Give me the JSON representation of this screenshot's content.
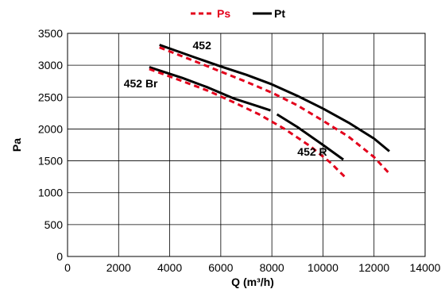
{
  "chart_data": {
    "type": "line",
    "xlabel": "Q (m³/h)",
    "ylabel": "Pa",
    "xlim": [
      0,
      14000
    ],
    "ylim": [
      0,
      3500
    ],
    "xticks": [
      0,
      2000,
      4000,
      6000,
      8000,
      10000,
      12000,
      14000
    ],
    "yticks": [
      0,
      500,
      1000,
      1500,
      2000,
      2500,
      3000,
      3500
    ],
    "grid": true,
    "legend": {
      "position": "top-center",
      "items": [
        {
          "label": "Ps",
          "color": "#e3001b",
          "style": "dashed"
        },
        {
          "label": "Pt",
          "color": "#000000",
          "style": "solid"
        }
      ]
    },
    "annotations": [
      {
        "text": "452",
        "x": 4900,
        "y": 3250
      },
      {
        "text": "452 Br",
        "x": 2200,
        "y": 2650
      },
      {
        "text": "452 R",
        "x": 9000,
        "y": 1580
      }
    ],
    "series": [
      {
        "curve": "452",
        "kind": "Pt",
        "color": "#000000",
        "style": "solid",
        "x": [
          3600,
          5000,
          6000,
          7000,
          8000,
          9000,
          10000,
          11000,
          12000,
          12600
        ],
        "y": [
          3320,
          3120,
          2980,
          2850,
          2700,
          2520,
          2320,
          2100,
          1850,
          1650
        ]
      },
      {
        "curve": "452",
        "kind": "Ps",
        "color": "#e3001b",
        "style": "dashed",
        "x": [
          3600,
          5000,
          6000,
          7000,
          8000,
          9000,
          10000,
          11000,
          12000,
          12600
        ],
        "y": [
          3280,
          3060,
          2900,
          2740,
          2570,
          2370,
          2130,
          1880,
          1560,
          1300
        ]
      },
      {
        "curve": "452 Br",
        "kind": "Pt",
        "color": "#000000",
        "style": "solid",
        "x": [
          3200,
          4500,
          5500,
          6500,
          7500,
          7950
        ],
        "y": [
          2970,
          2800,
          2650,
          2480,
          2350,
          2290
        ]
      },
      {
        "curve": "452 Br",
        "kind": "Ps",
        "color": "#e3001b",
        "style": "dashed",
        "x": [
          3200,
          4500,
          5500,
          6500,
          7500,
          8500,
          9500,
          10300,
          10850
        ],
        "y": [
          2940,
          2750,
          2600,
          2420,
          2230,
          2000,
          1730,
          1470,
          1250
        ]
      },
      {
        "curve": "452 R",
        "kind": "Pt",
        "color": "#000000",
        "style": "solid",
        "x": [
          8200,
          9000,
          10000,
          10800
        ],
        "y": [
          2230,
          2030,
          1750,
          1520
        ]
      }
    ]
  }
}
